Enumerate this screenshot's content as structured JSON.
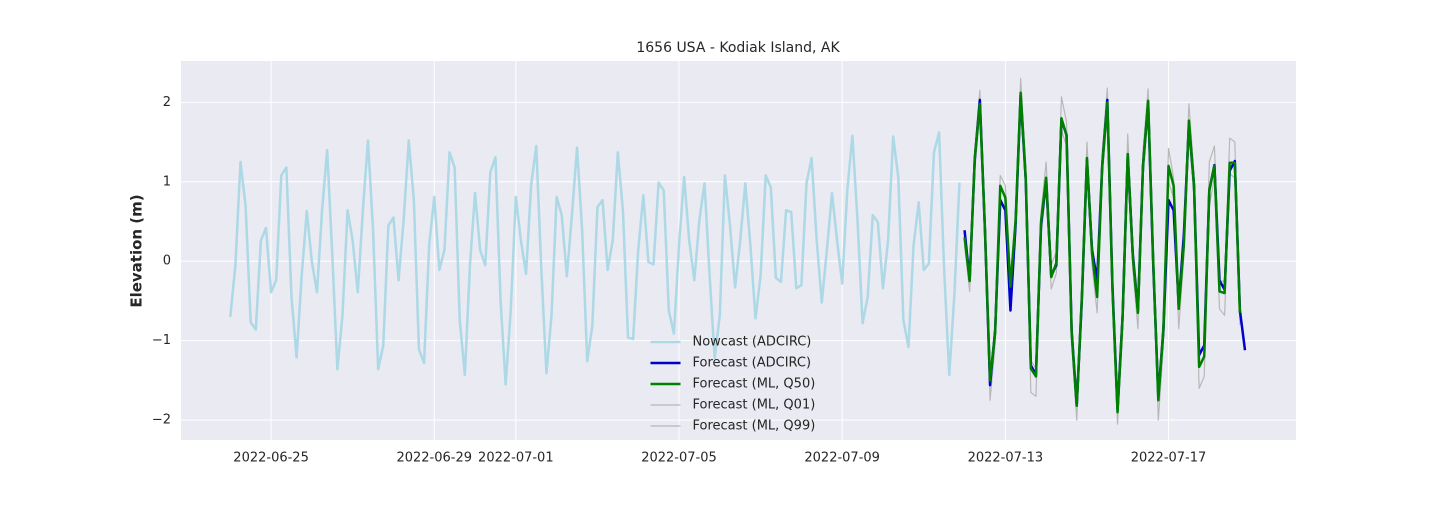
{
  "chart_data": {
    "type": "line",
    "title": "1656 USA - Kodiak Island, AK",
    "y_label": "Elevation (m)",
    "xlim": [
      "2022-06-22 19:00",
      "2022-07-20 03:00"
    ],
    "xticks": [
      "2022-06-25",
      "2022-06-29",
      "2022-07-01",
      "2022-07-05",
      "2022-07-09",
      "2022-07-13",
      "2022-07-17"
    ],
    "ylim": [
      -2.25,
      2.52
    ],
    "yticks": [
      {
        "value": -2,
        "label": "−2"
      },
      {
        "value": -1,
        "label": "−1"
      },
      0,
      1,
      2
    ],
    "grid": true,
    "legend": "lower center",
    "series": [
      {
        "name": "Nowcast (ADCIRC)",
        "color": "#add8e6",
        "linewidth": 2.5,
        "x": [
          "2022-06-24 00:00",
          "2022-06-24 03:00",
          "2022-06-24 06:00",
          "2022-06-24 09:00",
          "2022-06-24 12:00",
          "2022-06-24 15:00",
          "2022-06-24 18:00",
          "2022-06-24 21:00",
          "2022-06-25 00:00",
          "2022-06-25 03:00",
          "2022-06-25 06:00",
          "2022-06-25 09:00",
          "2022-06-25 12:00",
          "2022-06-25 15:00",
          "2022-06-25 18:00",
          "2022-06-25 21:00",
          "2022-06-26 00:00",
          "2022-06-26 03:00",
          "2022-06-26 06:00",
          "2022-06-26 09:00",
          "2022-06-26 12:00",
          "2022-06-26 15:00",
          "2022-06-26 18:00",
          "2022-06-26 21:00",
          "2022-06-27 00:00",
          "2022-06-27 03:00",
          "2022-06-27 06:00",
          "2022-06-27 09:00",
          "2022-06-27 12:00",
          "2022-06-27 15:00",
          "2022-06-27 18:00",
          "2022-06-27 21:00",
          "2022-06-28 00:00",
          "2022-06-28 03:00",
          "2022-06-28 06:00",
          "2022-06-28 09:00",
          "2022-06-28 12:00",
          "2022-06-28 15:00",
          "2022-06-28 18:00",
          "2022-06-28 21:00",
          "2022-06-29 00:00",
          "2022-06-29 03:00",
          "2022-06-29 06:00",
          "2022-06-29 09:00",
          "2022-06-29 12:00",
          "2022-06-29 15:00",
          "2022-06-29 18:00",
          "2022-06-29 21:00",
          "2022-06-30 00:00",
          "2022-06-30 03:00",
          "2022-06-30 06:00",
          "2022-06-30 09:00",
          "2022-06-30 12:00",
          "2022-06-30 15:00",
          "2022-06-30 18:00",
          "2022-06-30 21:00",
          "2022-07-01 00:00",
          "2022-07-01 03:00",
          "2022-07-01 06:00",
          "2022-07-01 09:00",
          "2022-07-01 12:00",
          "2022-07-01 15:00",
          "2022-07-01 18:00",
          "2022-07-01 21:00",
          "2022-07-02 00:00",
          "2022-07-02 03:00",
          "2022-07-02 06:00",
          "2022-07-02 09:00",
          "2022-07-02 12:00",
          "2022-07-02 15:00",
          "2022-07-02 18:00",
          "2022-07-02 21:00",
          "2022-07-03 00:00",
          "2022-07-03 03:00",
          "2022-07-03 06:00",
          "2022-07-03 09:00",
          "2022-07-03 12:00",
          "2022-07-03 15:00",
          "2022-07-03 18:00",
          "2022-07-03 21:00",
          "2022-07-04 00:00",
          "2022-07-04 03:00",
          "2022-07-04 06:00",
          "2022-07-04 09:00",
          "2022-07-04 12:00",
          "2022-07-04 15:00",
          "2022-07-04 18:00",
          "2022-07-04 21:00",
          "2022-07-05 00:00",
          "2022-07-05 03:00",
          "2022-07-05 06:00",
          "2022-07-05 09:00",
          "2022-07-05 12:00",
          "2022-07-05 15:00",
          "2022-07-05 18:00",
          "2022-07-05 21:00",
          "2022-07-06 00:00",
          "2022-07-06 03:00",
          "2022-07-06 06:00",
          "2022-07-06 09:00",
          "2022-07-06 12:00",
          "2022-07-06 15:00",
          "2022-07-06 18:00",
          "2022-07-06 21:00",
          "2022-07-07 00:00",
          "2022-07-07 03:00",
          "2022-07-07 06:00",
          "2022-07-07 09:00",
          "2022-07-07 12:00",
          "2022-07-07 15:00",
          "2022-07-07 18:00",
          "2022-07-07 21:00",
          "2022-07-08 00:00",
          "2022-07-08 03:00",
          "2022-07-08 06:00",
          "2022-07-08 09:00",
          "2022-07-08 12:00",
          "2022-07-08 15:00",
          "2022-07-08 18:00",
          "2022-07-08 21:00",
          "2022-07-09 00:00",
          "2022-07-09 03:00",
          "2022-07-09 06:00",
          "2022-07-09 09:00",
          "2022-07-09 12:00",
          "2022-07-09 15:00",
          "2022-07-09 18:00",
          "2022-07-09 21:00",
          "2022-07-10 00:00",
          "2022-07-10 03:00",
          "2022-07-10 06:00",
          "2022-07-10 09:00",
          "2022-07-10 12:00",
          "2022-07-10 15:00",
          "2022-07-10 18:00",
          "2022-07-10 21:00",
          "2022-07-11 00:00",
          "2022-07-11 03:00",
          "2022-07-11 06:00",
          "2022-07-11 09:00",
          "2022-07-11 12:00",
          "2022-07-11 15:00",
          "2022-07-11 18:00",
          "2022-07-11 21:00"
        ],
        "values": [
          -0.7,
          -0.05,
          1.25,
          0.7,
          -0.77,
          -0.86,
          0.26,
          0.42,
          -0.39,
          -0.24,
          1.08,
          1.18,
          -0.45,
          -1.21,
          -0.18,
          0.63,
          -0.01,
          -0.39,
          0.64,
          1.4,
          0.08,
          -1.36,
          -0.68,
          0.64,
          0.26,
          -0.39,
          0.64,
          1.52,
          0.39,
          -1.36,
          -1.06,
          0.45,
          0.55,
          -0.24,
          0.52,
          1.52,
          0.77,
          -1.11,
          -1.28,
          0.2,
          0.81,
          -0.11,
          0.14,
          1.37,
          1.18,
          -0.74,
          -1.43,
          -0.05,
          0.86,
          0.14,
          -0.05,
          1.12,
          1.31,
          -0.49,
          -1.55,
          -0.62,
          0.81,
          0.26,
          -0.16,
          0.96,
          1.45,
          -0.11,
          -1.41,
          -0.68,
          0.81,
          0.58,
          -0.19,
          0.58,
          1.43,
          0.39,
          -1.26,
          -0.81,
          0.68,
          0.77,
          -0.11,
          0.26,
          1.37,
          0.64,
          -0.96,
          -0.98,
          0.14,
          0.83,
          -0.01,
          -0.04,
          0.99,
          0.89,
          -0.62,
          -0.91,
          0.2,
          1.06,
          0.26,
          -0.24,
          0.52,
          0.98,
          -0.18,
          -1.22,
          -0.68,
          1.08,
          0.45,
          -0.33,
          0.26,
          0.98,
          0.2,
          -0.72,
          -0.18,
          1.08,
          0.93,
          -0.21,
          -0.26,
          0.64,
          0.62,
          -0.34,
          -0.3,
          0.98,
          1.3,
          0.26,
          -0.52,
          0.14,
          0.86,
          0.26,
          -0.28,
          0.89,
          1.58,
          0.52,
          -0.78,
          -0.45,
          0.58,
          0.49,
          -0.34,
          0.26,
          1.57,
          1.06,
          -0.74,
          -1.08,
          0.2,
          0.74,
          -0.11,
          -0.03,
          1.37,
          1.62,
          -0.11,
          -1.43,
          -0.43,
          0.99
        ]
      },
      {
        "name": "Forecast (ADCIRC)",
        "color": "#0000cd",
        "linewidth": 2.5,
        "x": [
          "2022-07-12 00:00",
          "2022-07-12 03:00",
          "2022-07-12 06:00",
          "2022-07-12 09:00",
          "2022-07-12 12:00",
          "2022-07-12 15:00",
          "2022-07-12 18:00",
          "2022-07-12 21:00",
          "2022-07-13 00:00",
          "2022-07-13 03:00",
          "2022-07-13 06:00",
          "2022-07-13 09:00",
          "2022-07-13 12:00",
          "2022-07-13 15:00",
          "2022-07-13 18:00",
          "2022-07-13 21:00",
          "2022-07-14 00:00",
          "2022-07-14 03:00",
          "2022-07-14 06:00",
          "2022-07-14 09:00",
          "2022-07-14 12:00",
          "2022-07-14 15:00",
          "2022-07-14 18:00",
          "2022-07-14 21:00",
          "2022-07-15 00:00",
          "2022-07-15 03:00",
          "2022-07-15 06:00",
          "2022-07-15 09:00",
          "2022-07-15 12:00",
          "2022-07-15 15:00",
          "2022-07-15 18:00",
          "2022-07-15 21:00",
          "2022-07-16 00:00",
          "2022-07-16 03:00",
          "2022-07-16 06:00",
          "2022-07-16 09:00",
          "2022-07-16 12:00",
          "2022-07-16 15:00",
          "2022-07-16 18:00",
          "2022-07-16 21:00",
          "2022-07-17 00:00",
          "2022-07-17 03:00",
          "2022-07-17 06:00",
          "2022-07-17 09:00",
          "2022-07-17 12:00",
          "2022-07-17 15:00",
          "2022-07-17 18:00",
          "2022-07-17 21:00",
          "2022-07-18 00:00",
          "2022-07-18 03:00",
          "2022-07-18 06:00",
          "2022-07-18 09:00",
          "2022-07-18 12:00",
          "2022-07-18 15:00",
          "2022-07-18 18:00",
          "2022-07-18 21:00"
        ],
        "values": [
          0.39,
          -0.24,
          1.28,
          2.03,
          0.39,
          -1.56,
          -0.87,
          0.77,
          0.64,
          -0.62,
          0.45,
          2.09,
          1.02,
          -1.31,
          -1.43,
          0.45,
          1.02,
          -0.18,
          -0.05,
          1.78,
          1.59,
          -0.87,
          -1.81,
          -0.49,
          1.27,
          0.14,
          -0.24,
          1.21,
          2.03,
          -0.3,
          -1.87,
          -0.68,
          1.33,
          0.08,
          -0.62,
          1.21,
          1.99,
          -0.05,
          -1.69,
          -0.87,
          0.77,
          0.64,
          -0.55,
          0.33,
          1.72,
          0.96,
          -1.18,
          -1.06,
          0.89,
          1.21,
          -0.24,
          -0.36,
          1.14,
          1.26,
          -0.62,
          -1.12
        ]
      },
      {
        "name": "Forecast (ML, Q50)",
        "color": "#008000",
        "linewidth": 2.5,
        "x": [
          "2022-07-12 00:00",
          "2022-07-12 03:00",
          "2022-07-12 06:00",
          "2022-07-12 09:00",
          "2022-07-12 12:00",
          "2022-07-12 15:00",
          "2022-07-12 18:00",
          "2022-07-12 21:00",
          "2022-07-13 00:00",
          "2022-07-13 03:00",
          "2022-07-13 06:00",
          "2022-07-13 09:00",
          "2022-07-13 12:00",
          "2022-07-13 15:00",
          "2022-07-13 18:00",
          "2022-07-13 21:00",
          "2022-07-14 00:00",
          "2022-07-14 03:00",
          "2022-07-14 06:00",
          "2022-07-14 09:00",
          "2022-07-14 12:00",
          "2022-07-14 15:00",
          "2022-07-14 18:00",
          "2022-07-14 21:00",
          "2022-07-15 00:00",
          "2022-07-15 03:00",
          "2022-07-15 06:00",
          "2022-07-15 09:00",
          "2022-07-15 12:00",
          "2022-07-15 15:00",
          "2022-07-15 18:00",
          "2022-07-15 21:00",
          "2022-07-16 00:00",
          "2022-07-16 03:00",
          "2022-07-16 06:00",
          "2022-07-16 09:00",
          "2022-07-16 12:00",
          "2022-07-16 15:00",
          "2022-07-16 18:00",
          "2022-07-16 21:00",
          "2022-07-17 00:00",
          "2022-07-17 03:00",
          "2022-07-17 06:00",
          "2022-07-17 09:00",
          "2022-07-17 12:00",
          "2022-07-17 15:00",
          "2022-07-17 18:00",
          "2022-07-17 21:00",
          "2022-07-18 00:00",
          "2022-07-18 03:00",
          "2022-07-18 06:00",
          "2022-07-18 09:00",
          "2022-07-18 12:00",
          "2022-07-18 15:00",
          "2022-07-18 18:00"
        ],
        "values": [
          0.3,
          -0.25,
          1.3,
          1.98,
          0.4,
          -1.5,
          -0.9,
          0.95,
          0.8,
          -0.32,
          0.5,
          2.12,
          1.05,
          -1.35,
          -1.45,
          0.5,
          1.05,
          -0.2,
          -0.02,
          1.8,
          1.58,
          -0.9,
          -1.82,
          -0.45,
          1.3,
          0.1,
          -0.45,
          1.2,
          2.0,
          -0.35,
          -1.9,
          -0.7,
          1.35,
          0.05,
          -0.65,
          1.2,
          2.02,
          0.0,
          -1.75,
          -0.85,
          1.2,
          0.95,
          -0.6,
          0.2,
          1.77,
          0.95,
          -1.33,
          -1.2,
          0.9,
          1.2,
          -0.38,
          -0.4,
          1.24,
          1.24,
          -0.65
        ]
      },
      {
        "name": "Forecast (ML, Q01)",
        "color": "#b8b8b8",
        "linewidth": 1.2,
        "x": [
          "2022-07-12 00:00",
          "2022-07-12 03:00",
          "2022-07-12 06:00",
          "2022-07-12 09:00",
          "2022-07-12 12:00",
          "2022-07-12 15:00",
          "2022-07-12 18:00",
          "2022-07-12 21:00",
          "2022-07-13 00:00",
          "2022-07-13 03:00",
          "2022-07-13 06:00",
          "2022-07-13 09:00",
          "2022-07-13 12:00",
          "2022-07-13 15:00",
          "2022-07-13 18:00",
          "2022-07-13 21:00",
          "2022-07-14 00:00",
          "2022-07-14 03:00",
          "2022-07-14 06:00",
          "2022-07-14 09:00",
          "2022-07-14 12:00",
          "2022-07-14 15:00",
          "2022-07-14 18:00",
          "2022-07-14 21:00",
          "2022-07-15 00:00",
          "2022-07-15 03:00",
          "2022-07-15 06:00",
          "2022-07-15 09:00",
          "2022-07-15 12:00",
          "2022-07-15 15:00",
          "2022-07-15 18:00",
          "2022-07-15 21:00",
          "2022-07-16 00:00",
          "2022-07-16 03:00",
          "2022-07-16 06:00",
          "2022-07-16 09:00",
          "2022-07-16 12:00",
          "2022-07-16 15:00",
          "2022-07-16 18:00",
          "2022-07-16 21:00",
          "2022-07-17 00:00",
          "2022-07-17 03:00",
          "2022-07-17 06:00",
          "2022-07-17 09:00",
          "2022-07-17 12:00",
          "2022-07-17 15:00",
          "2022-07-17 18:00",
          "2022-07-17 21:00",
          "2022-07-18 00:00",
          "2022-07-18 03:00",
          "2022-07-18 06:00",
          "2022-07-18 09:00",
          "2022-07-18 12:00",
          "2022-07-18 15:00",
          "2022-07-18 18:00"
        ],
        "values": [
          0.2,
          -0.38,
          1.15,
          1.85,
          0.25,
          -1.75,
          -1.05,
          0.8,
          0.65,
          -0.45,
          0.35,
          1.95,
          0.9,
          -1.65,
          -1.7,
          0.35,
          0.9,
          -0.35,
          -0.15,
          1.65,
          1.45,
          -1.05,
          -2.0,
          -0.65,
          1.15,
          -0.05,
          -0.65,
          1.05,
          1.85,
          -0.5,
          -2.05,
          -0.9,
          1.15,
          -0.1,
          -0.85,
          1.05,
          1.85,
          -0.15,
          -2.0,
          -1.05,
          1.0,
          0.8,
          -0.85,
          0.05,
          1.6,
          0.8,
          -1.6,
          -1.45,
          0.7,
          1.05,
          -0.6,
          -0.68,
          1.1,
          1.05,
          -0.8
        ]
      },
      {
        "name": "Forecast (ML, Q99)",
        "color": "#b8b8b8",
        "linewidth": 1.2,
        "x": [
          "2022-07-12 00:00",
          "2022-07-12 03:00",
          "2022-07-12 06:00",
          "2022-07-12 09:00",
          "2022-07-12 12:00",
          "2022-07-12 15:00",
          "2022-07-12 18:00",
          "2022-07-12 21:00",
          "2022-07-13 00:00",
          "2022-07-13 03:00",
          "2022-07-13 06:00",
          "2022-07-13 09:00",
          "2022-07-13 12:00",
          "2022-07-13 15:00",
          "2022-07-13 18:00",
          "2022-07-13 21:00",
          "2022-07-14 00:00",
          "2022-07-14 03:00",
          "2022-07-14 06:00",
          "2022-07-14 09:00",
          "2022-07-14 12:00",
          "2022-07-14 15:00",
          "2022-07-14 18:00",
          "2022-07-14 21:00",
          "2022-07-15 00:00",
          "2022-07-15 03:00",
          "2022-07-15 06:00",
          "2022-07-15 09:00",
          "2022-07-15 12:00",
          "2022-07-15 15:00",
          "2022-07-15 18:00",
          "2022-07-15 21:00",
          "2022-07-16 00:00",
          "2022-07-16 03:00",
          "2022-07-16 06:00",
          "2022-07-16 09:00",
          "2022-07-16 12:00",
          "2022-07-16 15:00",
          "2022-07-16 18:00",
          "2022-07-16 21:00",
          "2022-07-17 00:00",
          "2022-07-17 03:00",
          "2022-07-17 06:00",
          "2022-07-17 09:00",
          "2022-07-17 12:00",
          "2022-07-17 15:00",
          "2022-07-17 18:00",
          "2022-07-17 21:00",
          "2022-07-18 00:00",
          "2022-07-18 03:00",
          "2022-07-18 06:00",
          "2022-07-18 09:00",
          "2022-07-18 12:00",
          "2022-07-18 15:00",
          "2022-07-18 18:00"
        ],
        "values": [
          0.35,
          -0.1,
          1.4,
          2.15,
          0.55,
          -1.4,
          -0.8,
          1.08,
          0.95,
          -0.2,
          0.62,
          2.3,
          1.2,
          -1.25,
          -1.35,
          0.62,
          1.25,
          -0.05,
          0.12,
          2.07,
          1.75,
          -0.8,
          -1.7,
          -0.3,
          1.5,
          0.25,
          -0.3,
          1.38,
          2.18,
          -0.2,
          -1.8,
          -0.55,
          1.6,
          0.2,
          -0.5,
          1.4,
          2.17,
          0.15,
          -1.6,
          -0.7,
          1.42,
          1.05,
          -0.45,
          0.4,
          1.98,
          1.1,
          -1.2,
          -1.05,
          1.25,
          1.45,
          -0.25,
          -0.25,
          1.55,
          1.5,
          -0.55
        ]
      }
    ]
  }
}
